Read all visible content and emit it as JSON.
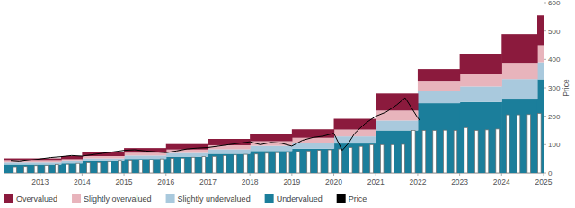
{
  "chart_data": {
    "type": "area",
    "stacked": true,
    "grid": false,
    "legend": "bottom",
    "y_label": "Price",
    "xlim": [
      2012.15,
      2025.0
    ],
    "xticks": [
      2013,
      2014,
      2015,
      2016,
      2017,
      2018,
      2019,
      2020,
      2021,
      2022,
      2023,
      2024,
      2025
    ],
    "ylim": [
      0,
      600
    ],
    "yticks": [
      0,
      100,
      200,
      300,
      400,
      500,
      600
    ],
    "series": [
      {
        "name": "Overvalued",
        "type": "area",
        "color": "#8b1a3d",
        "x": [
          2012.15,
          2013.5,
          2014,
          2015,
          2016,
          2017,
          2018,
          2019,
          2020,
          2021,
          2022,
          2023,
          2024,
          2024.85
        ],
        "values": [
          9,
          11,
          13,
          16,
          19,
          22,
          26,
          30,
          38,
          60,
          41,
          70,
          101,
          105
        ]
      },
      {
        "name": "Slightly overvalued",
        "type": "area",
        "color": "#e8b4bc",
        "x": [
          2012.15,
          2013.5,
          2014,
          2015,
          2016,
          2017,
          2018,
          2019,
          2020,
          2021,
          2022,
          2023,
          2024,
          2024.85
        ],
        "values": [
          6,
          7,
          8,
          10,
          12,
          14,
          16,
          18,
          24,
          35,
          35,
          45,
          57,
          60
        ]
      },
      {
        "name": "Slightly undervalued",
        "type": "area",
        "color": "#a9c9dd",
        "x": [
          2012.15,
          2013.5,
          2014,
          2015,
          2016,
          2017,
          2018,
          2019,
          2020,
          2021,
          2022,
          2023,
          2024,
          2024.85
        ],
        "values": [
          7,
          8,
          10,
          12,
          13,
          16,
          18,
          20,
          25,
          35,
          44,
          55,
          69,
          60
        ]
      },
      {
        "name": "Undervalued",
        "type": "area",
        "color": "#1b7e9b",
        "x": [
          2012.15,
          2013.5,
          2014,
          2015,
          2016,
          2017,
          2018,
          2019,
          2020,
          2021,
          2022,
          2023,
          2024,
          2024.85
        ],
        "values": [
          30,
          34,
          42,
          50,
          58,
          68,
          78,
          86,
          104,
          150,
          246,
          250,
          262,
          330
        ]
      },
      {
        "name": "Price",
        "type": "line",
        "color": "#000000",
        "x": [
          2012.3,
          2012.5,
          2012.75,
          2013,
          2013.25,
          2013.5,
          2013.75,
          2014,
          2014.25,
          2014.5,
          2014.75,
          2015,
          2015.25,
          2015.5,
          2015.75,
          2016,
          2016.25,
          2016.5,
          2016.75,
          2017,
          2017.25,
          2017.5,
          2017.75,
          2018,
          2018.25,
          2018.5,
          2018.75,
          2019,
          2019.25,
          2019.5,
          2019.75,
          2020,
          2020.2,
          2020.35,
          2020.5,
          2020.75,
          2021,
          2021.25,
          2021.5,
          2021.7,
          2021.85,
          2022,
          2022.05
        ],
        "values": [
          42,
          40,
          45,
          50,
          55,
          58,
          62,
          60,
          65,
          70,
          75,
          80,
          82,
          78,
          75,
          72,
          78,
          85,
          88,
          90,
          95,
          100,
          105,
          110,
          100,
          108,
          105,
          95,
          115,
          125,
          130,
          140,
          80,
          105,
          140,
          175,
          200,
          215,
          240,
          265,
          230,
          195,
          185
        ]
      },
      {
        "type": "bar",
        "color": "#ffffff",
        "x": [
          2012.4,
          2012.65,
          2012.9,
          2013.15,
          2013.4,
          2013.65,
          2013.9,
          2014.15,
          2014.4,
          2014.65,
          2014.9,
          2015.15,
          2015.4,
          2015.65,
          2015.9,
          2016.15,
          2016.4,
          2016.65,
          2016.9,
          2017.15,
          2017.4,
          2017.65,
          2017.9,
          2018.15,
          2018.4,
          2018.65,
          2018.9,
          2019.15,
          2019.4,
          2019.65,
          2019.9,
          2020.15,
          2020.4,
          2020.65,
          2020.9,
          2021.15,
          2021.4,
          2021.65,
          2021.9,
          2022.15,
          2022.4,
          2022.65,
          2022.9,
          2023.15,
          2023.4,
          2023.65,
          2023.9,
          2024.15,
          2024.4,
          2024.65,
          2024.9
        ],
        "values": [
          22,
          23,
          26,
          27,
          30,
          31,
          34,
          36,
          37,
          40,
          42,
          43,
          46,
          47,
          50,
          52,
          53,
          56,
          58,
          59,
          62,
          64,
          66,
          67,
          70,
          72,
          73,
          76,
          78,
          80,
          82,
          85,
          90,
          94,
          100,
          100,
          100,
          101,
          150,
          150,
          150,
          151,
          150,
          160,
          150,
          152,
          155,
          205,
          205,
          206,
          210
        ]
      }
    ]
  }
}
